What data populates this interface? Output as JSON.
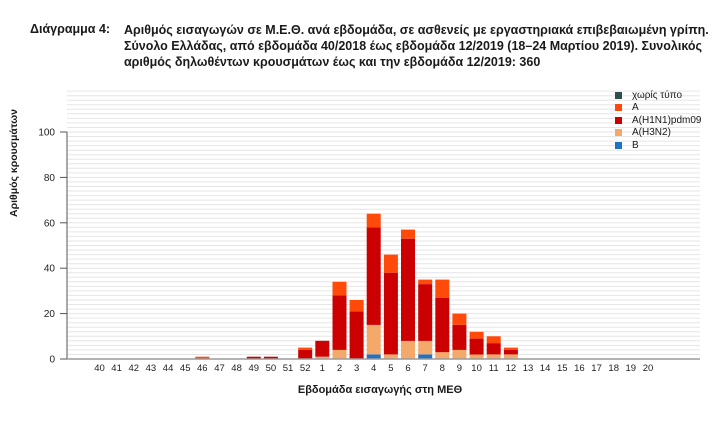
{
  "header": {
    "label": "Διάγραμμα 4:",
    "title": "Αριθμός εισαγωγών σε Μ.Ε.Θ. ανά εβδομάδα, σε ασθενείς με εργαστηριακά επιβεβαιωμένη γρίπη. Σύνολο Ελλάδας, από εβδομάδα 40/2018 έως εβδομάδα 12/2019 (18–24 Μαρτίου 2019). Συνολικός αριθμός δηλωθέντων κρουσμάτων έως και την εβδομάδα 12/2019: 360"
  },
  "colors": {
    "untyped": "#2f4f4f",
    "A": "#ff4a0a",
    "H1N1": "#cc0000",
    "H3N2": "#f4a96a",
    "B": "#1e73c8",
    "grid": "#e6e6e6",
    "axis": "#555555"
  },
  "chart_data": {
    "type": "bar",
    "stacked": true,
    "title": "Αριθμός εισαγωγών σε Μ.Ε.Θ. ανά εβδομάδα, σε ασθενείς με εργαστηριακά επιβεβαιωμένη γρίπη",
    "xlabel": "Εβδομάδα εισαγωγής στη ΜΕΘ",
    "ylabel": "Αριθμός κρουσμάτων",
    "ylim": [
      0,
      100
    ],
    "yticks": [
      0,
      20,
      40,
      60,
      80,
      100
    ],
    "grid": true,
    "legend_position": "top-right",
    "categories": [
      "40",
      "41",
      "42",
      "43",
      "44",
      "45",
      "46",
      "47",
      "48",
      "49",
      "50",
      "51",
      "52",
      "1",
      "2",
      "3",
      "4",
      "5",
      "6",
      "7",
      "8",
      "9",
      "10",
      "11",
      "12",
      "13",
      "14",
      "15",
      "16",
      "17",
      "18",
      "19",
      "20"
    ],
    "series": [
      {
        "name": "B",
        "color_key": "B",
        "values": [
          0,
          0,
          0,
          0,
          0,
          0,
          0,
          0,
          0,
          0,
          0,
          0,
          0,
          0,
          0,
          0,
          2,
          0,
          0,
          2,
          0,
          0,
          0,
          0,
          0,
          0,
          0,
          0,
          0,
          0,
          0,
          0,
          0
        ]
      },
      {
        "name": "A(H3N2)",
        "color_key": "H3N2",
        "values": [
          0,
          0,
          0,
          0,
          0,
          0,
          0,
          0,
          0,
          0,
          0,
          0,
          0,
          1,
          4,
          0,
          13,
          2,
          8,
          6,
          3,
          4,
          2,
          2,
          2,
          0,
          0,
          0,
          0,
          0,
          0,
          0,
          0
        ]
      },
      {
        "name": "A(H1N1)pdm09",
        "color_key": "H1N1",
        "values": [
          0,
          0,
          0,
          0,
          0,
          0,
          0,
          0,
          0,
          1,
          1,
          0,
          4,
          7,
          24,
          21,
          43,
          36,
          45,
          25,
          24,
          11,
          7,
          5,
          2,
          0,
          0,
          0,
          0,
          0,
          0,
          0,
          0
        ]
      },
      {
        "name": "A",
        "color_key": "A",
        "values": [
          0,
          0,
          0,
          0,
          0,
          0,
          1,
          0,
          0,
          0,
          0,
          0,
          1,
          0,
          6,
          5,
          6,
          8,
          4,
          2,
          8,
          5,
          3,
          3,
          1,
          0,
          0,
          0,
          0,
          0,
          0,
          0,
          0
        ]
      },
      {
        "name": "χωρίς τύπο",
        "color_key": "untyped",
        "values": [
          0,
          0,
          0,
          0,
          0,
          0,
          0,
          0,
          0,
          0,
          0,
          0,
          0,
          0,
          0,
          0,
          0,
          0,
          0,
          0,
          0,
          0,
          0,
          0,
          0,
          0,
          0,
          0,
          0,
          0,
          0,
          0,
          0
        ]
      }
    ],
    "totals": [
      0,
      0,
      0,
      0,
      0,
      0,
      1,
      0,
      0,
      1,
      1,
      0,
      5,
      8,
      34,
      26,
      64,
      46,
      57,
      35,
      35,
      20,
      12,
      10,
      5,
      0,
      0,
      0,
      0,
      0,
      0,
      0,
      0
    ],
    "total_cases": 360
  },
  "legend": [
    {
      "label": "χωρίς τύπο",
      "color_key": "untyped"
    },
    {
      "label": "A",
      "color_key": "A"
    },
    {
      "label": "A(H1N1)pdm09",
      "color_key": "H1N1"
    },
    {
      "label": "A(H3N2)",
      "color_key": "H3N2"
    },
    {
      "label": "B",
      "color_key": "B"
    }
  ]
}
